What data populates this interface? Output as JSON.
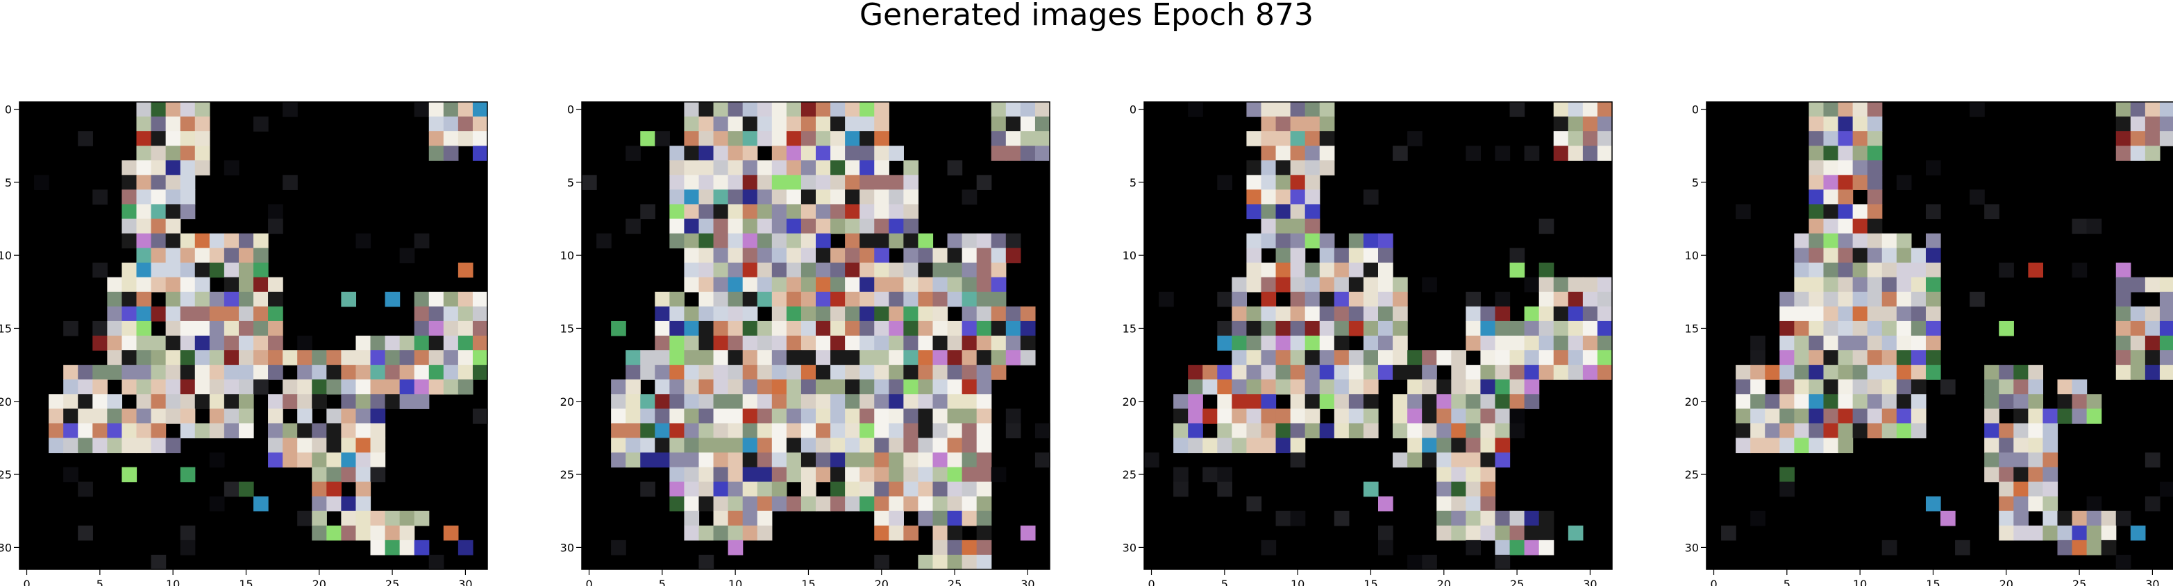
{
  "figure": {
    "title": "Generated images Epoch 873"
  },
  "chart_data": [
    {
      "type": "heatmap",
      "grid_size": 32,
      "xlim": [
        -0.5,
        31.5
      ],
      "ylim": [
        31.5,
        -0.5
      ],
      "xticks": [
        0,
        5,
        10,
        15,
        20,
        25,
        30
      ],
      "yticks": [
        0,
        5,
        10,
        15,
        20,
        25,
        30
      ],
      "xtick_labels": [
        "0",
        "5",
        "10",
        "15",
        "20",
        "25",
        "30"
      ],
      "ytick_labels": [
        "0",
        "5",
        "10",
        "15",
        "20",
        "25",
        "30"
      ],
      "seed": 11,
      "rects": [
        [
          8,
          0,
          12,
          4
        ],
        [
          7,
          4,
          11,
          9
        ],
        [
          7,
          9,
          16,
          13
        ],
        [
          6,
          12,
          17,
          18
        ],
        [
          3,
          18,
          15,
          22
        ],
        [
          2,
          20,
          10,
          23
        ],
        [
          18,
          17,
          22,
          22
        ],
        [
          17,
          20,
          24,
          24
        ],
        [
          20,
          23,
          23,
          29
        ],
        [
          24,
          28,
          27,
          30
        ],
        [
          28,
          0,
          31,
          3
        ],
        [
          27,
          13,
          31,
          18
        ],
        [
          28,
          15,
          30,
          19
        ],
        [
          23,
          16,
          27,
          20
        ]
      ],
      "scatter": [
        [
          22,
          13
        ],
        [
          25,
          13
        ],
        [
          30,
          11
        ],
        [
          9,
          14
        ],
        [
          5,
          16
        ],
        [
          20,
          19
        ],
        [
          26,
          19
        ],
        [
          7,
          25
        ],
        [
          11,
          25
        ],
        [
          15,
          26
        ],
        [
          16,
          27
        ],
        [
          25,
          30
        ],
        [
          29,
          29
        ],
        [
          30,
          30
        ]
      ]
    },
    {
      "type": "heatmap",
      "grid_size": 32,
      "xlim": [
        -0.5,
        31.5
      ],
      "ylim": [
        31.5,
        -0.5
      ],
      "xticks": [
        0,
        5,
        10,
        15,
        20,
        25,
        30
      ],
      "yticks": [
        0,
        5,
        10,
        15,
        20,
        25,
        30
      ],
      "xtick_labels": [
        "0",
        "5",
        "10",
        "15",
        "20",
        "25",
        "30"
      ],
      "ytick_labels": [
        "0",
        "5",
        "10",
        "15",
        "20",
        "25",
        "30"
      ],
      "seed": 23,
      "rects": [
        [
          7,
          0,
          20,
          4
        ],
        [
          6,
          3,
          22,
          9
        ],
        [
          7,
          9,
          26,
          13
        ],
        [
          5,
          13,
          28,
          18
        ],
        [
          3,
          17,
          27,
          22
        ],
        [
          2,
          19,
          27,
          24
        ],
        [
          6,
          22,
          25,
          27
        ],
        [
          7,
          26,
          12,
          29
        ],
        [
          20,
          25,
          27,
          29
        ],
        [
          23,
          28,
          27,
          31
        ],
        [
          28,
          0,
          31,
          3
        ],
        [
          24,
          9,
          28,
          13
        ],
        [
          27,
          14,
          30,
          17
        ]
      ],
      "scatter": [
        [
          4,
          2
        ],
        [
          6,
          7
        ],
        [
          29,
          10
        ],
        [
          2,
          15
        ],
        [
          29,
          15
        ],
        [
          4,
          24
        ],
        [
          10,
          30
        ],
        [
          26,
          30
        ],
        [
          30,
          29
        ]
      ]
    },
    {
      "type": "heatmap",
      "grid_size": 32,
      "xlim": [
        -0.5,
        31.5
      ],
      "ylim": [
        31.5,
        -0.5
      ],
      "xticks": [
        0,
        5,
        10,
        15,
        20,
        25,
        30
      ],
      "yticks": [
        0,
        5,
        10,
        15,
        20,
        25,
        30
      ],
      "xtick_labels": [
        "0",
        "5",
        "10",
        "15",
        "20",
        "25",
        "30"
      ],
      "ytick_labels": [
        "0",
        "5",
        "10",
        "15",
        "20",
        "25",
        "30"
      ],
      "seed": 37,
      "rects": [
        [
          7,
          0,
          12,
          4
        ],
        [
          7,
          4,
          11,
          9
        ],
        [
          7,
          9,
          16,
          13
        ],
        [
          6,
          12,
          17,
          18
        ],
        [
          3,
          18,
          15,
          22
        ],
        [
          2,
          20,
          10,
          23
        ],
        [
          18,
          17,
          22,
          22
        ],
        [
          17,
          20,
          24,
          24
        ],
        [
          20,
          23,
          23,
          29
        ],
        [
          24,
          28,
          27,
          30
        ],
        [
          28,
          0,
          31,
          3
        ],
        [
          27,
          12,
          31,
          18
        ],
        [
          22,
          14,
          26,
          20
        ]
      ],
      "scatter": [
        [
          25,
          11
        ],
        [
          27,
          11
        ],
        [
          5,
          16
        ],
        [
          14,
          15
        ],
        [
          26,
          18
        ],
        [
          15,
          26
        ],
        [
          16,
          27
        ],
        [
          25,
          30
        ],
        [
          29,
          29
        ]
      ]
    },
    {
      "type": "heatmap",
      "grid_size": 32,
      "xlim": [
        -0.5,
        31.5
      ],
      "ylim": [
        31.5,
        -0.5
      ],
      "xticks": [
        0,
        5,
        10,
        15,
        20,
        25,
        30
      ],
      "yticks": [
        0,
        5,
        10,
        15,
        20,
        25,
        30
      ],
      "xtick_labels": [
        "0",
        "5",
        "10",
        "15",
        "20",
        "25",
        "30"
      ],
      "ytick_labels": [
        "0",
        "5",
        "10",
        "15",
        "20",
        "25",
        "30"
      ],
      "seed": 53,
      "rects": [
        [
          7,
          0,
          11,
          4
        ],
        [
          7,
          4,
          11,
          9
        ],
        [
          6,
          9,
          15,
          13
        ],
        [
          5,
          13,
          15,
          18
        ],
        [
          2,
          18,
          14,
          22
        ],
        [
          2,
          20,
          9,
          23
        ],
        [
          19,
          18,
          22,
          23
        ],
        [
          19,
          21,
          23,
          25
        ],
        [
          20,
          24,
          23,
          29
        ],
        [
          24,
          28,
          27,
          30
        ],
        [
          28,
          0,
          31,
          3
        ],
        [
          28,
          12,
          31,
          18
        ],
        [
          24,
          19,
          26,
          21
        ]
      ],
      "scatter": [
        [
          22,
          11
        ],
        [
          28,
          11
        ],
        [
          20,
          15
        ],
        [
          6,
          23
        ],
        [
          5,
          25
        ],
        [
          15,
          27
        ],
        [
          16,
          28
        ],
        [
          25,
          30
        ],
        [
          29,
          29
        ],
        [
          15,
          15
        ]
      ]
    }
  ]
}
